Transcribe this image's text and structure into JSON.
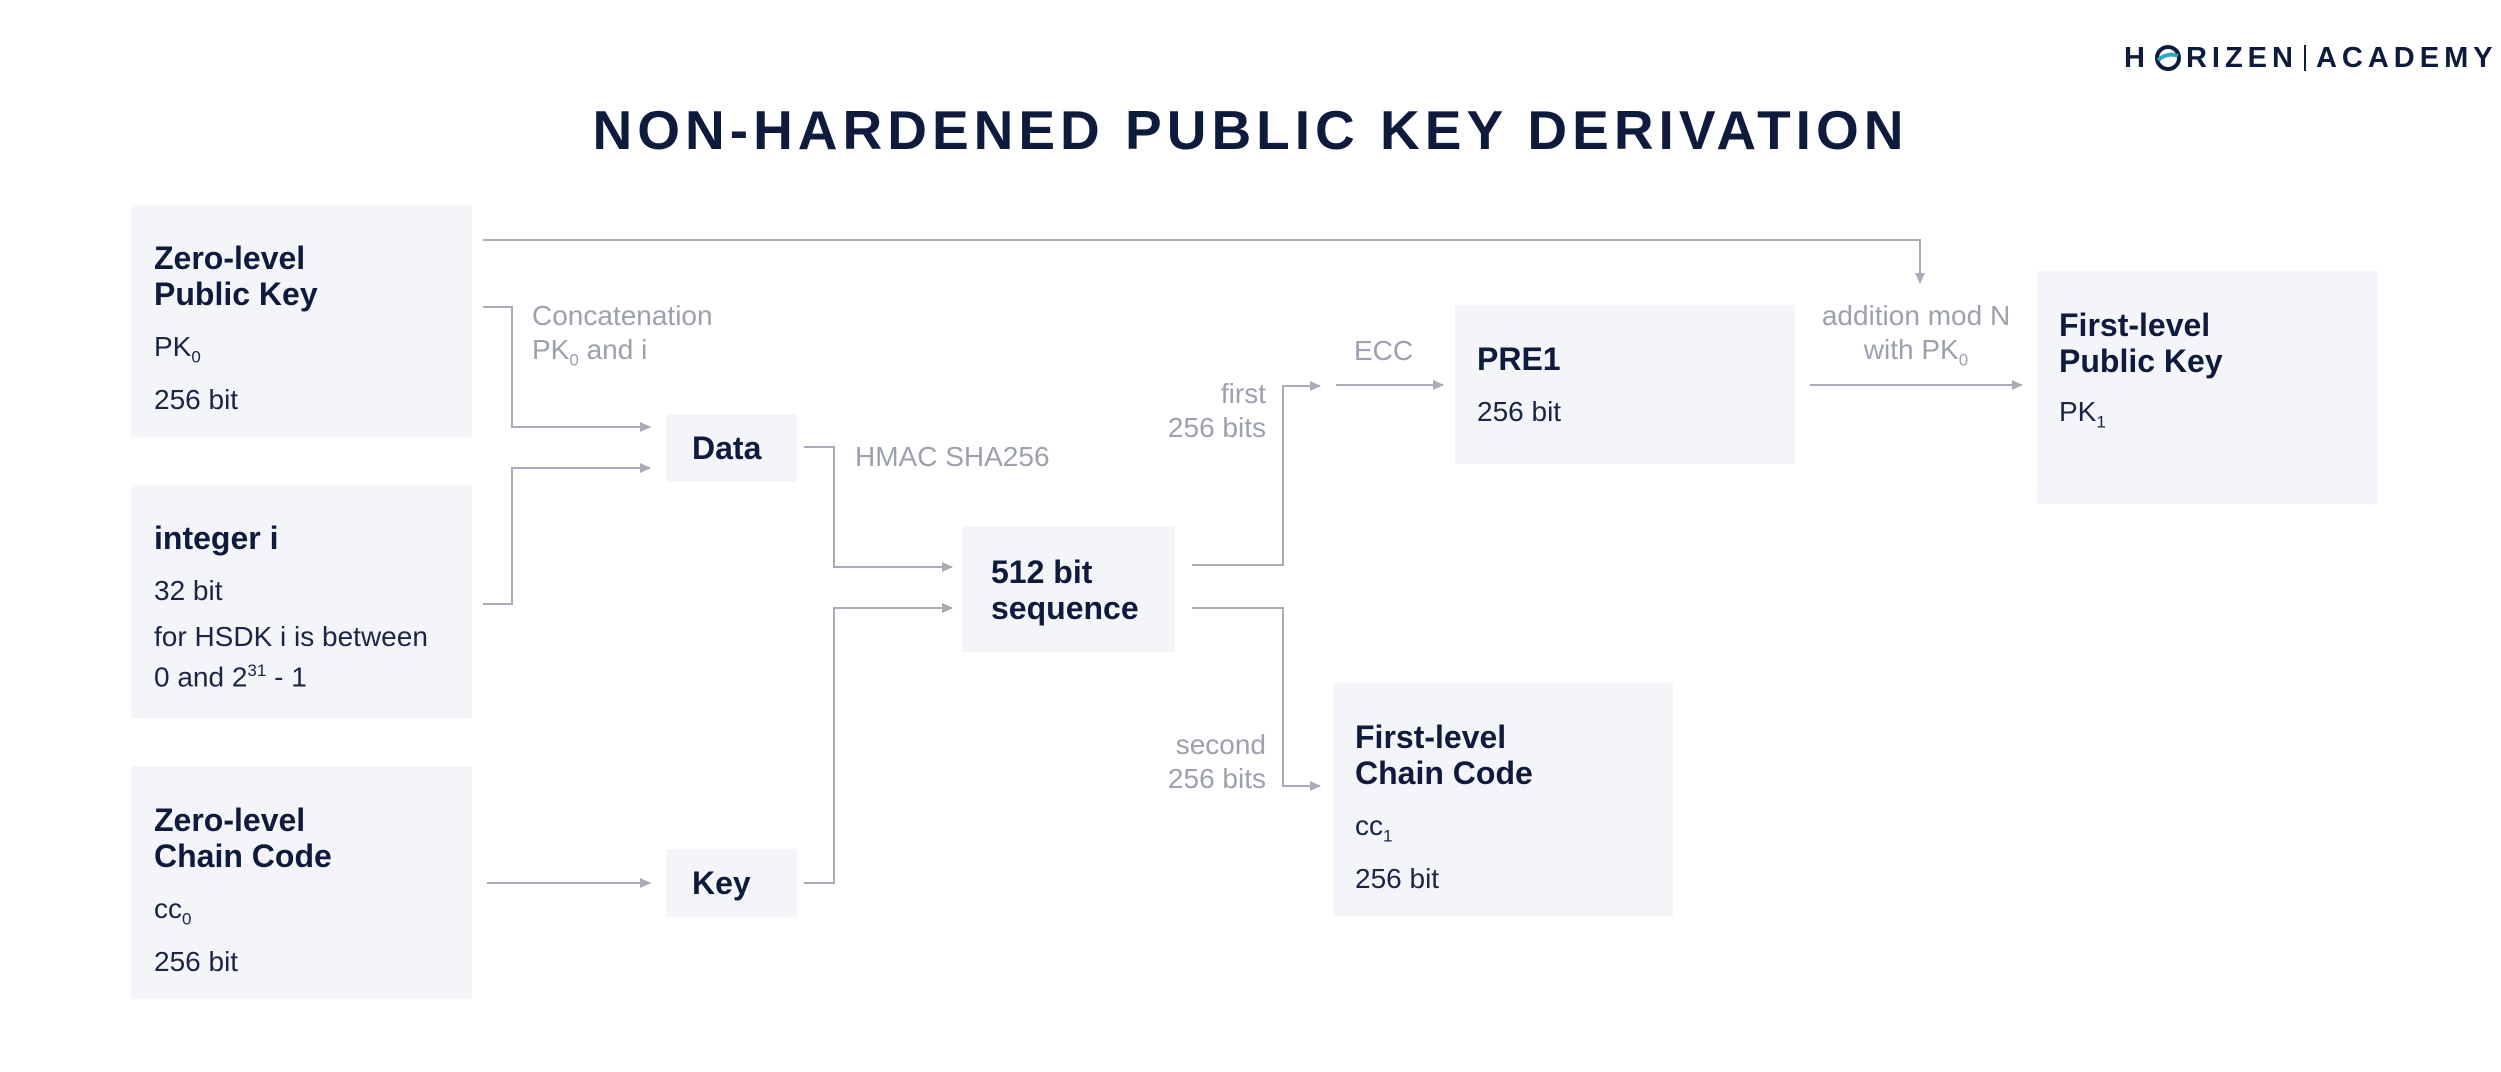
{
  "brand": {
    "prefix": "H",
    "rest": "RIZEN",
    "suffix": "ACADEMY"
  },
  "title": "NON-HARDENED PUBLIC KEY DERIVATION",
  "boxes": {
    "zero_pk": {
      "title_line1": "Zero-level",
      "title_line2": "Public Key",
      "symbol": "PK",
      "symbol_sub": "0",
      "size": "256 bit"
    },
    "integer_i": {
      "title": "integer i",
      "size": "32 bit",
      "note_line1": "for HSDK i is between",
      "note_line2_start": "0 and 2",
      "note_exp": "31",
      "note_line2_end": " - 1"
    },
    "zero_cc": {
      "title_line1": "Zero-level",
      "title_line2": "Chain Code",
      "symbol": "cc",
      "symbol_sub": "0",
      "size": "256 bit"
    },
    "data": {
      "title": "Data"
    },
    "key": {
      "title": "Key"
    },
    "seq": {
      "title_line1": "512 bit",
      "title_line2": "sequence"
    },
    "pre1": {
      "title": "PRE1",
      "size": "256 bit"
    },
    "first_pk": {
      "title_line1": "First-level",
      "title_line2": "Public Key",
      "symbol": "PK",
      "symbol_sub": "1"
    },
    "first_cc": {
      "title_line1": "First-level",
      "title_line2": "Chain Code",
      "symbol": "cc",
      "symbol_sub": "1",
      "size": "256 bit"
    }
  },
  "labels": {
    "concat_line1": "Concatenation",
    "concat_line2_start": "PK",
    "concat_line2_sub": "0",
    "concat_line2_end": " and i",
    "hmac": "HMAC SHA256",
    "first_line1": "first",
    "first_line2": "256 bits",
    "second_line1": "second",
    "second_line2": "256 bits",
    "ecc": "ECC",
    "addition_line1": "addition mod N",
    "addition_line2_start": "with PK",
    "addition_line2_sub": "0"
  },
  "colors": {
    "box_bg": "#f3f5f9",
    "heading": "#0f1b3d",
    "label": "#9ca1ad",
    "wire": "#a8acb6",
    "accent": "#2aa8c9"
  }
}
